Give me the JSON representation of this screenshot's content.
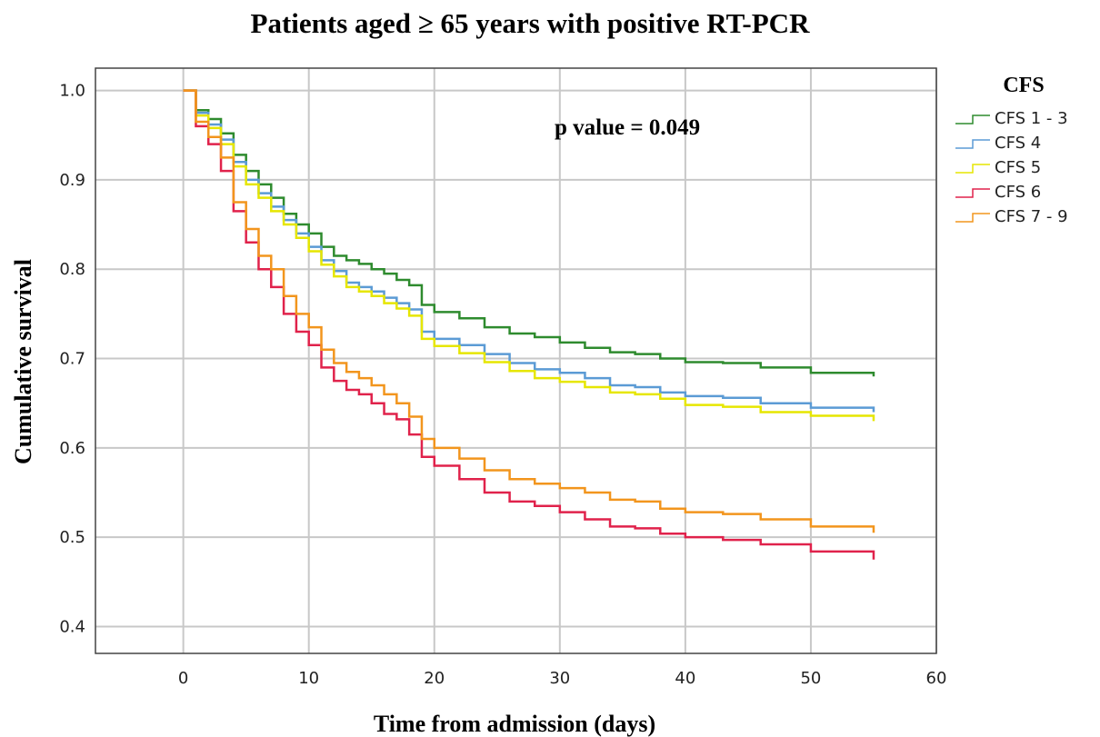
{
  "chart_data": {
    "type": "line",
    "title": "Patients aged ≥ 65 years with positive RT-PCR",
    "xlabel": "Time from admission (days)",
    "ylabel": "Cumulative survival",
    "xlim": [
      -7,
      60
    ],
    "ylim": [
      0.37,
      1.025
    ],
    "xticks": [
      0,
      10,
      20,
      30,
      40,
      50,
      60
    ],
    "yticks": [
      0.4,
      0.5,
      0.6,
      0.7,
      0.8,
      0.9,
      1.0
    ],
    "ytick_labels": [
      "0.4",
      "0.5",
      "0.6",
      "0.7",
      "0.8",
      "0.9",
      "1.0"
    ],
    "grid": true,
    "legend_title": "CFS",
    "legend_position": "right",
    "annotation": "p value = 0.049",
    "series": [
      {
        "name": "CFS 1 - 3",
        "color": "#2e8b2e",
        "x": [
          0,
          1,
          2,
          3,
          4,
          5,
          6,
          7,
          8,
          9,
          10,
          11,
          12,
          13,
          14,
          15,
          16,
          17,
          18,
          19,
          20,
          22,
          24,
          26,
          28,
          30,
          32,
          34,
          36,
          38,
          40,
          43,
          46,
          50,
          55
        ],
        "y": [
          1.0,
          0.978,
          0.968,
          0.952,
          0.928,
          0.91,
          0.895,
          0.88,
          0.862,
          0.85,
          0.84,
          0.825,
          0.815,
          0.81,
          0.806,
          0.8,
          0.795,
          0.788,
          0.782,
          0.76,
          0.752,
          0.745,
          0.735,
          0.728,
          0.724,
          0.718,
          0.712,
          0.707,
          0.705,
          0.7,
          0.696,
          0.695,
          0.69,
          0.684,
          0.68
        ]
      },
      {
        "name": "CFS 4",
        "color": "#5b9bd5",
        "x": [
          0,
          1,
          2,
          3,
          4,
          5,
          6,
          7,
          8,
          9,
          10,
          11,
          12,
          13,
          14,
          15,
          16,
          17,
          18,
          19,
          20,
          22,
          24,
          26,
          28,
          30,
          32,
          34,
          36,
          38,
          40,
          43,
          46,
          50,
          55
        ],
        "y": [
          1.0,
          0.975,
          0.962,
          0.945,
          0.92,
          0.9,
          0.885,
          0.87,
          0.855,
          0.84,
          0.825,
          0.81,
          0.798,
          0.785,
          0.78,
          0.775,
          0.768,
          0.762,
          0.755,
          0.73,
          0.722,
          0.715,
          0.705,
          0.695,
          0.688,
          0.684,
          0.678,
          0.67,
          0.668,
          0.662,
          0.658,
          0.656,
          0.65,
          0.645,
          0.64
        ]
      },
      {
        "name": "CFS 5",
        "color": "#e6e600",
        "x": [
          0,
          1,
          2,
          3,
          4,
          5,
          6,
          7,
          8,
          9,
          10,
          11,
          12,
          13,
          14,
          15,
          16,
          17,
          18,
          19,
          20,
          22,
          24,
          26,
          28,
          30,
          32,
          34,
          36,
          38,
          40,
          43,
          46,
          50,
          55
        ],
        "y": [
          1.0,
          0.972,
          0.958,
          0.94,
          0.915,
          0.895,
          0.88,
          0.865,
          0.85,
          0.835,
          0.82,
          0.805,
          0.792,
          0.78,
          0.775,
          0.77,
          0.762,
          0.756,
          0.748,
          0.722,
          0.714,
          0.706,
          0.696,
          0.686,
          0.678,
          0.674,
          0.668,
          0.662,
          0.66,
          0.655,
          0.648,
          0.646,
          0.64,
          0.636,
          0.63
        ]
      },
      {
        "name": "CFS 6",
        "color": "#e0224b",
        "x": [
          0,
          1,
          2,
          3,
          4,
          5,
          6,
          7,
          8,
          9,
          10,
          11,
          12,
          13,
          14,
          15,
          16,
          17,
          18,
          19,
          20,
          22,
          24,
          26,
          28,
          30,
          32,
          34,
          36,
          38,
          40,
          43,
          46,
          50,
          55
        ],
        "y": [
          1.0,
          0.96,
          0.94,
          0.91,
          0.865,
          0.83,
          0.8,
          0.78,
          0.75,
          0.73,
          0.715,
          0.69,
          0.675,
          0.665,
          0.66,
          0.65,
          0.638,
          0.632,
          0.615,
          0.59,
          0.58,
          0.565,
          0.55,
          0.54,
          0.535,
          0.528,
          0.52,
          0.512,
          0.51,
          0.504,
          0.5,
          0.497,
          0.492,
          0.484,
          0.475
        ]
      },
      {
        "name": "CFS 7 - 9",
        "color": "#f2951d",
        "x": [
          0,
          1,
          2,
          3,
          4,
          5,
          6,
          7,
          8,
          9,
          10,
          11,
          12,
          13,
          14,
          15,
          16,
          17,
          18,
          19,
          20,
          22,
          24,
          26,
          28,
          30,
          32,
          34,
          36,
          38,
          40,
          43,
          46,
          50,
          55
        ],
        "y": [
          1.0,
          0.965,
          0.948,
          0.925,
          0.875,
          0.845,
          0.815,
          0.8,
          0.77,
          0.75,
          0.735,
          0.71,
          0.695,
          0.685,
          0.678,
          0.67,
          0.66,
          0.65,
          0.635,
          0.61,
          0.6,
          0.588,
          0.575,
          0.565,
          0.56,
          0.555,
          0.55,
          0.542,
          0.54,
          0.532,
          0.528,
          0.526,
          0.52,
          0.512,
          0.505
        ]
      }
    ]
  }
}
